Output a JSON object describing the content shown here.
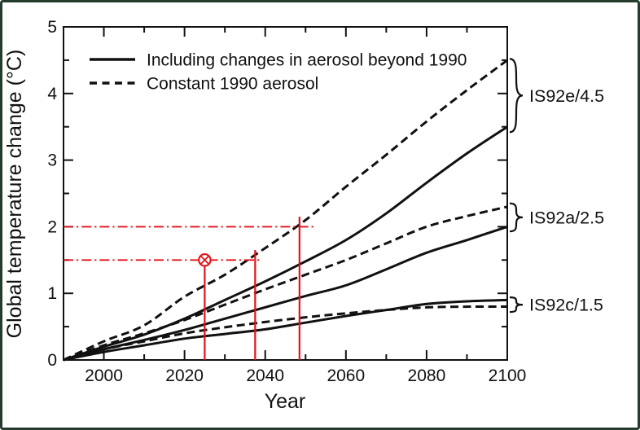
{
  "figure": {
    "background": "#ffffff",
    "border_color": "#243c2e",
    "ink_color": "#111111",
    "annotation_color": "#e31219"
  },
  "chart_data": {
    "type": "line",
    "title": "",
    "xlabel": "Year",
    "ylabel": "Global temperature change (°C)",
    "xlim": [
      1990,
      2100
    ],
    "ylim": [
      0,
      5
    ],
    "x_major_ticks": [
      2000,
      2020,
      2040,
      2060,
      2080,
      2100
    ],
    "x_minor_ticks": [
      2010,
      2030,
      2050,
      2070,
      2090
    ],
    "y_major_ticks": [
      0,
      1,
      2,
      3,
      4,
      5
    ],
    "y_minor_ticks": [
      0.5,
      1.5,
      2.5,
      3.5,
      4.5
    ],
    "grid": false,
    "legend_position": "top-left-inside",
    "legend": [
      {
        "style": "solid",
        "label": "Including changes in aerosol beyond 1990"
      },
      {
        "style": "dashed",
        "label": "Constant 1990 aerosol"
      }
    ],
    "x": [
      1990,
      2000,
      2010,
      2020,
      2030,
      2040,
      2050,
      2060,
      2070,
      2080,
      2090,
      2100
    ],
    "series": [
      {
        "name": "IS92e constant 1990 aerosol",
        "scenario": "IS92e/4.5",
        "style": "dashed",
        "values": [
          0,
          0.28,
          0.52,
          0.95,
          1.28,
          1.68,
          2.1,
          2.6,
          3.08,
          3.58,
          4.05,
          4.5
        ]
      },
      {
        "name": "IS92e including aerosol changes",
        "scenario": "IS92e/4.5",
        "style": "solid",
        "values": [
          0,
          0.2,
          0.38,
          0.62,
          0.9,
          1.18,
          1.48,
          1.8,
          2.2,
          2.66,
          3.1,
          3.5
        ]
      },
      {
        "name": "IS92a constant 1990 aerosol",
        "scenario": "IS92a/2.5",
        "style": "dashed",
        "values": [
          0,
          0.22,
          0.4,
          0.6,
          0.83,
          1.06,
          1.28,
          1.5,
          1.75,
          2.0,
          2.16,
          2.3
        ]
      },
      {
        "name": "IS92a including aerosol changes",
        "scenario": "IS92a/2.5",
        "style": "solid",
        "values": [
          0,
          0.16,
          0.3,
          0.45,
          0.62,
          0.79,
          0.96,
          1.12,
          1.36,
          1.61,
          1.8,
          2.0
        ]
      },
      {
        "name": "IS92c constant 1990 aerosol",
        "scenario": "IS92c/1.5",
        "style": "dashed",
        "values": [
          0,
          0.16,
          0.28,
          0.4,
          0.49,
          0.57,
          0.64,
          0.7,
          0.75,
          0.79,
          0.8,
          0.8
        ]
      },
      {
        "name": "IS92c including aerosol changes",
        "scenario": "IS92c/1.5",
        "style": "solid",
        "values": [
          0,
          0.12,
          0.22,
          0.32,
          0.39,
          0.46,
          0.56,
          0.66,
          0.75,
          0.84,
          0.88,
          0.9
        ]
      }
    ],
    "scenario_labels": [
      {
        "label": "IS92e/4.5",
        "brace_top": 4.52,
        "brace_bottom": 3.42
      },
      {
        "label": "IS92a/2.5",
        "brace_top": 2.35,
        "brace_bottom": 1.93
      },
      {
        "label": "IS92c/1.5",
        "brace_top": 0.94,
        "brace_bottom": 0.72
      }
    ],
    "annotations": {
      "hlines": [
        {
          "y": 2.0,
          "x_from": 1990,
          "x_to": 2052.0
        },
        {
          "y": 1.5,
          "x_from": 1990,
          "x_to": 2038.5
        }
      ],
      "vlines": [
        {
          "x": 2025.0,
          "y_from": 0,
          "y_to": 1.45
        },
        {
          "x": 2037.5,
          "y_from": 0,
          "y_to": 1.65
        },
        {
          "x": 2048.5,
          "y_from": 0,
          "y_to": 2.15
        }
      ],
      "marker": {
        "x": 2025,
        "y": 1.5,
        "type": "circled-x"
      }
    }
  }
}
